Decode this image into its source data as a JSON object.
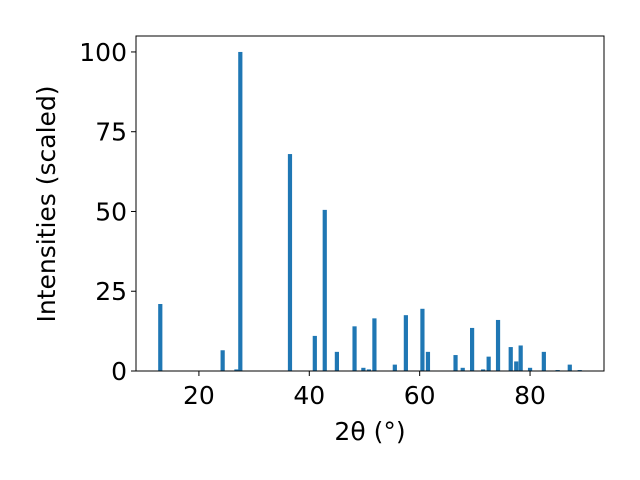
{
  "chart_data": {
    "type": "bar",
    "title": "",
    "xlabel": "2θ (°)",
    "ylabel": "Intensities (scaled)",
    "xlim": [
      8.6,
      93.4
    ],
    "ylim": [
      0,
      105
    ],
    "xticks": [
      20,
      40,
      60,
      80
    ],
    "yticks": [
      0,
      25,
      50,
      75,
      100
    ],
    "grid": false,
    "bar_color": "#1f77b4",
    "x": [
      13,
      24.3,
      26.8,
      27.5,
      36.5,
      41,
      42.8,
      45,
      48.2,
      49.8,
      50.8,
      51.8,
      55.5,
      57.5,
      60.5,
      61.5,
      66.5,
      67.8,
      69.5,
      71.5,
      72.5,
      74.2,
      76.5,
      77.5,
      78.3,
      80,
      82.5,
      85,
      87.2,
      89
    ],
    "values": [
      21,
      6.5,
      0.5,
      100,
      68,
      11,
      50.5,
      6,
      14,
      1,
      0.5,
      16.5,
      2,
      17.5,
      19.5,
      6,
      5,
      1,
      13.5,
      0.5,
      4.5,
      16,
      7.5,
      3,
      8,
      1,
      6,
      0.3,
      2,
      0.3
    ]
  }
}
